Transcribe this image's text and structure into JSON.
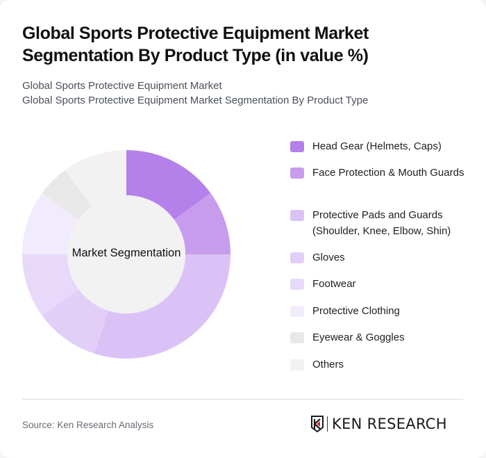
{
  "header": {
    "title": "Global Sports Protective Equipment Market Segmentation By Product Type (in value %)",
    "subtitle_line1": "Global Sports Protective Equipment Market",
    "subtitle_line2": "Global Sports Protective Equipment Market Segmentation By Product Type"
  },
  "chart": {
    "center_label": "Market Segmentation"
  },
  "legend": [
    {
      "label": "Head Gear (Helmets, Caps)",
      "color": "#b480ea"
    },
    {
      "label": "Face Protection & Mouth Guards",
      "color": "#c79ced"
    },
    {
      "label": "Protective Pads and Guards (Shoulder, Knee, Elbow, Shin)",
      "color": "#dbc2f6"
    },
    {
      "label": "Gloves",
      "color": "#e2cff8"
    },
    {
      "label": "Footwear",
      "color": "#e8d9fa"
    },
    {
      "label": "Protective Clothing",
      "color": "#f1ebfc"
    },
    {
      "label": "Eyewear & Goggles",
      "color": "#e8e8e8"
    },
    {
      "label": "Others",
      "color": "#f2f2f2"
    }
  ],
  "footer": {
    "source": "Source: Ken Research Analysis",
    "logo_text": "KEN RESEARCH"
  },
  "chart_data": {
    "type": "pie",
    "subtype": "donut",
    "title": "Global Sports Protective Equipment Market Segmentation By Product Type (in value %)",
    "center_label": "Market Segmentation",
    "categories": [
      "Head Gear (Helmets, Caps)",
      "Face Protection & Mouth Guards",
      "Protective Pads and Guards (Shoulder, Knee, Elbow, Shin)",
      "Gloves",
      "Footwear",
      "Protective Clothing",
      "Eyewear & Goggles",
      "Others"
    ],
    "values": [
      15,
      10,
      30,
      10,
      10,
      10,
      5,
      10
    ],
    "colors": [
      "#b480ea",
      "#c79ced",
      "#dbc2f6",
      "#e2cff8",
      "#e8d9fa",
      "#f1ebfc",
      "#e8e8e8",
      "#f2f2f2"
    ],
    "legend_position": "right",
    "start_angle": "12 o'clock, clockwise"
  }
}
